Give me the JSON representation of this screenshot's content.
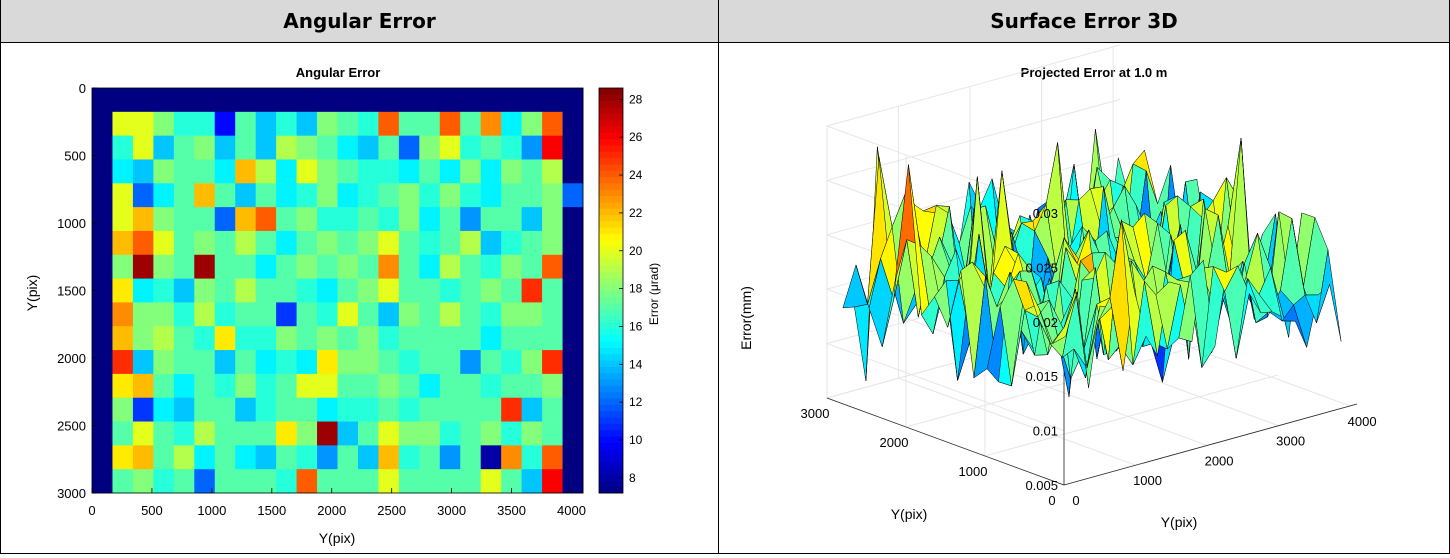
{
  "table": {
    "left_header": "Angular Error",
    "right_header": "Surface Error 3D"
  },
  "chart_data": [
    {
      "type": "heatmap",
      "title": "Angular Error",
      "xlabel": "Y(pix)",
      "ylabel": "Y(pix)",
      "xlim": [
        0,
        4096
      ],
      "ylim": [
        0,
        3000
      ],
      "y_reversed": true,
      "xticks": [
        0,
        500,
        1000,
        1500,
        2000,
        2500,
        3000,
        3500,
        4000
      ],
      "yticks": [
        0,
        500,
        1000,
        1500,
        2000,
        2500,
        3000
      ],
      "colorbar": {
        "label": "Error (μrad)",
        "range": [
          7.2,
          28.6
        ],
        "ticks": [
          8,
          10,
          12,
          14,
          16,
          18,
          20,
          22,
          24,
          26,
          28
        ],
        "colormap": "jet"
      },
      "grid_cols": 24,
      "grid_rows": 17,
      "values": [
        [
          7,
          7,
          7,
          7,
          7,
          7,
          7,
          7,
          7,
          7,
          7,
          7,
          7,
          7,
          7,
          7,
          7,
          7,
          7,
          7,
          7,
          7,
          7,
          7
        ],
        [
          7,
          20,
          20,
          18,
          16,
          16,
          10,
          17,
          14,
          16,
          14,
          18,
          17,
          16,
          24,
          17,
          17,
          24,
          17,
          23,
          15,
          18,
          24,
          7
        ],
        [
          7,
          16,
          20,
          14,
          17,
          18,
          14,
          17,
          14,
          19,
          18,
          17,
          15,
          14,
          17,
          12,
          18,
          20,
          16,
          17,
          16,
          13,
          26,
          7
        ],
        [
          7,
          15,
          14,
          18,
          17,
          17,
          15,
          22,
          19,
          15,
          20,
          18,
          17,
          16,
          16,
          15,
          17,
          15,
          18,
          15,
          18,
          17,
          19,
          7
        ],
        [
          7,
          20,
          12,
          15,
          17,
          22,
          17,
          14,
          17,
          15,
          16,
          18,
          15,
          16,
          17,
          18,
          16,
          18,
          16,
          15,
          17,
          17,
          18,
          12
        ],
        [
          7,
          20,
          22,
          18,
          17,
          17,
          12,
          22,
          24,
          17,
          18,
          16,
          16,
          17,
          16,
          18,
          15,
          17,
          13,
          17,
          17,
          14,
          18,
          7
        ],
        [
          7,
          22,
          24,
          20,
          17,
          18,
          17,
          19,
          17,
          15,
          17,
          18,
          17,
          18,
          20,
          17,
          16,
          17,
          19,
          14,
          16,
          17,
          18,
          7
        ],
        [
          7,
          18,
          28,
          18,
          17,
          28,
          17,
          17,
          15,
          17,
          18,
          17,
          18,
          17,
          23,
          17,
          15,
          19,
          17,
          16,
          18,
          17,
          24,
          7
        ],
        [
          7,
          21,
          15,
          16,
          14,
          18,
          17,
          19,
          17,
          17,
          16,
          15,
          17,
          18,
          20,
          17,
          17,
          16,
          17,
          18,
          17,
          25,
          17,
          7
        ],
        [
          7,
          23,
          18,
          18,
          16,
          19,
          16,
          17,
          17,
          11,
          17,
          16,
          20,
          17,
          14,
          18,
          17,
          19,
          17,
          16,
          18,
          18,
          17,
          7
        ],
        [
          7,
          22,
          18,
          19,
          17,
          16,
          21,
          16,
          16,
          18,
          17,
          18,
          17,
          18,
          16,
          17,
          17,
          17,
          17,
          15,
          17,
          17,
          17,
          7
        ],
        [
          7,
          25,
          14,
          18,
          17,
          17,
          14,
          17,
          15,
          16,
          15,
          21,
          18,
          18,
          17,
          16,
          17,
          17,
          13,
          17,
          16,
          18,
          25,
          7
        ],
        [
          7,
          21,
          22,
          17,
          15,
          17,
          16,
          18,
          16,
          17,
          20,
          20,
          17,
          17,
          18,
          17,
          15,
          17,
          17,
          16,
          17,
          17,
          18,
          7
        ],
        [
          7,
          18,
          11,
          15,
          14,
          17,
          17,
          14,
          16,
          17,
          17,
          15,
          16,
          16,
          17,
          16,
          17,
          17,
          17,
          17,
          25,
          14,
          17,
          7
        ],
        [
          7,
          17,
          20,
          17,
          16,
          19,
          17,
          17,
          17,
          21,
          18,
          28,
          14,
          17,
          20,
          18,
          18,
          16,
          17,
          18,
          16,
          18,
          17,
          7
        ],
        [
          7,
          21,
          22,
          17,
          19,
          15,
          17,
          15,
          14,
          17,
          16,
          13,
          17,
          14,
          22,
          16,
          17,
          13,
          17,
          8,
          23,
          16,
          24,
          7
        ],
        [
          7,
          17,
          18,
          16,
          17,
          12,
          17,
          17,
          17,
          16,
          24,
          17,
          17,
          17,
          20,
          17,
          17,
          17,
          17,
          20,
          17,
          14,
          26,
          7
        ]
      ]
    },
    {
      "type": "surface3d",
      "title": "Projected Error at 1.0 m",
      "xlabel": "Y(pix)",
      "ylabel": "Y(pix)",
      "zlabel": "Error(mm)",
      "xticks": [
        0,
        1000,
        2000,
        3000,
        4000
      ],
      "yticks": [
        0,
        1000,
        2000,
        3000
      ],
      "zticks": [
        0.005,
        0.01,
        0.015,
        0.02,
        0.025,
        0.03
      ],
      "zlim": [
        0.005,
        0.03
      ],
      "colormap": "jet"
    }
  ]
}
